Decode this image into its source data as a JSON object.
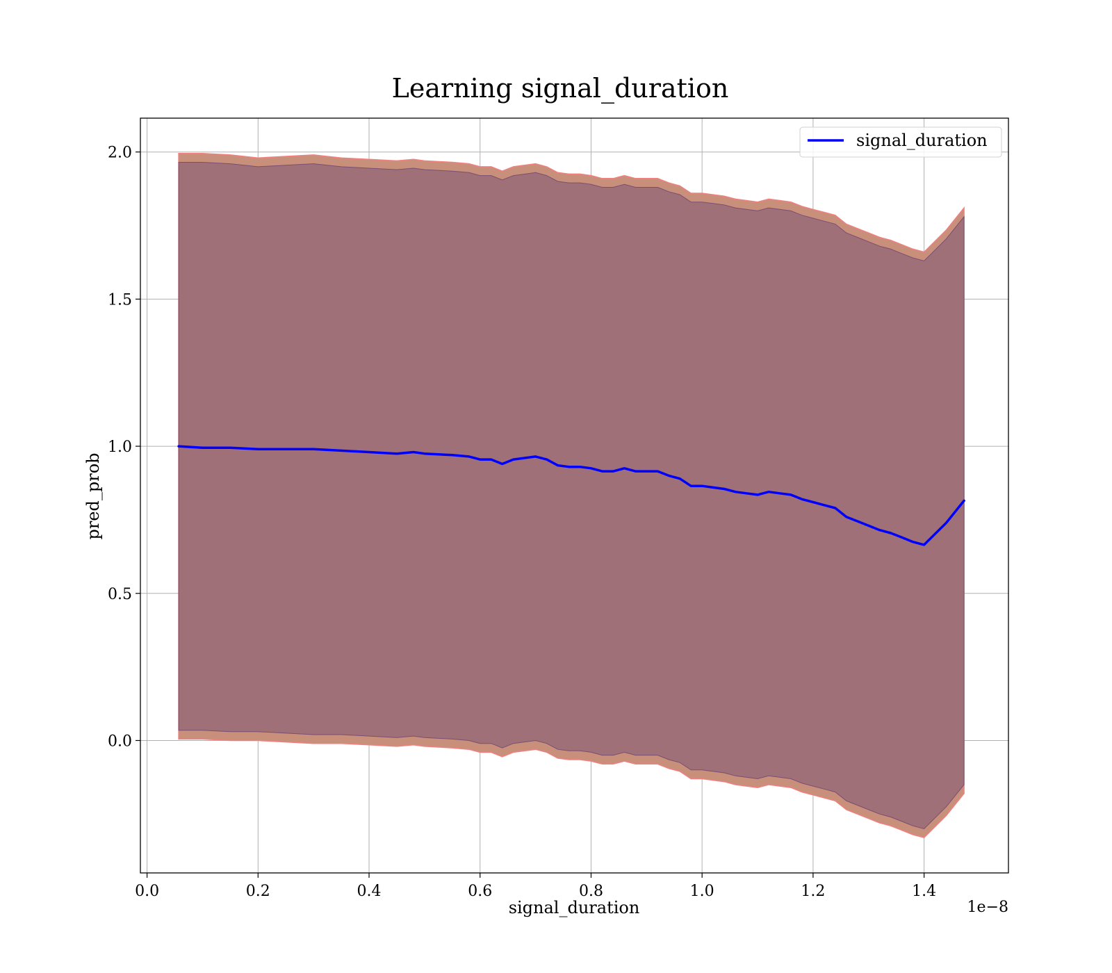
{
  "chart_data": {
    "type": "line",
    "title": "Learning signal_duration",
    "xlabel": "signal_duration",
    "ylabel": "pred_prob",
    "x_offset_text": "1e−8",
    "xlim": [
      -0.012,
      1.552
    ],
    "ylim": [
      -0.45,
      2.115
    ],
    "x_ticks": [
      0.0,
      0.2,
      0.4,
      0.6,
      0.8,
      1.0,
      1.2,
      1.4
    ],
    "x_tick_labels": [
      "0.0",
      "0.2",
      "0.4",
      "0.6",
      "0.8",
      "1.0",
      "1.2",
      "1.4"
    ],
    "y_ticks": [
      0.0,
      0.5,
      1.0,
      1.5,
      2.0
    ],
    "y_tick_labels": [
      "0.0",
      "0.5",
      "1.0",
      "1.5",
      "2.0"
    ],
    "grid": true,
    "legend": {
      "position": "top-right",
      "entries": [
        "signal_duration"
      ]
    },
    "colors": {
      "line": "#0000ff",
      "outer_band": "#c8907a",
      "outer_band_edge": "#f08080",
      "inner_band": "#a07078",
      "inner_band_edge": "#7a4d73"
    },
    "series": [
      {
        "name": "signal_duration",
        "x": [
          0.057,
          0.1,
          0.15,
          0.2,
          0.25,
          0.3,
          0.35,
          0.4,
          0.45,
          0.48,
          0.5,
          0.55,
          0.58,
          0.6,
          0.62,
          0.64,
          0.66,
          0.7,
          0.72,
          0.74,
          0.76,
          0.78,
          0.8,
          0.82,
          0.84,
          0.86,
          0.88,
          0.9,
          0.92,
          0.94,
          0.96,
          0.98,
          1.0,
          1.02,
          1.04,
          1.06,
          1.08,
          1.1,
          1.12,
          1.14,
          1.16,
          1.18,
          1.2,
          1.22,
          1.24,
          1.26,
          1.28,
          1.3,
          1.32,
          1.34,
          1.36,
          1.38,
          1.4,
          1.44,
          1.472
        ],
        "y": [
          1.0,
          0.995,
          0.995,
          0.99,
          0.99,
          0.99,
          0.985,
          0.98,
          0.975,
          0.98,
          0.975,
          0.97,
          0.965,
          0.955,
          0.955,
          0.94,
          0.955,
          0.965,
          0.955,
          0.935,
          0.93,
          0.93,
          0.925,
          0.915,
          0.915,
          0.925,
          0.915,
          0.915,
          0.915,
          0.9,
          0.89,
          0.865,
          0.865,
          0.86,
          0.855,
          0.845,
          0.84,
          0.835,
          0.845,
          0.84,
          0.835,
          0.82,
          0.81,
          0.8,
          0.79,
          0.76,
          0.745,
          0.73,
          0.715,
          0.705,
          0.69,
          0.675,
          0.665,
          0.74,
          0.815
        ]
      }
    ],
    "bands": [
      {
        "name": "outer",
        "lower": [
          0.005,
          0.005,
          0.0,
          0.0,
          -0.005,
          -0.01,
          -0.01,
          -0.015,
          -0.02,
          -0.015,
          -0.02,
          -0.025,
          -0.03,
          -0.04,
          -0.04,
          -0.055,
          -0.04,
          -0.03,
          -0.04,
          -0.06,
          -0.065,
          -0.065,
          -0.07,
          -0.08,
          -0.08,
          -0.07,
          -0.08,
          -0.08,
          -0.08,
          -0.095,
          -0.105,
          -0.13,
          -0.13,
          -0.135,
          -0.14,
          -0.15,
          -0.155,
          -0.16,
          -0.15,
          -0.155,
          -0.16,
          -0.175,
          -0.185,
          -0.195,
          -0.205,
          -0.235,
          -0.25,
          -0.265,
          -0.28,
          -0.29,
          -0.305,
          -0.32,
          -0.33,
          -0.255,
          -0.18
        ],
        "upper": [
          1.995,
          1.995,
          1.99,
          1.98,
          1.985,
          1.99,
          1.98,
          1.975,
          1.97,
          1.975,
          1.97,
          1.965,
          1.96,
          1.95,
          1.95,
          1.935,
          1.95,
          1.96,
          1.95,
          1.93,
          1.925,
          1.925,
          1.92,
          1.91,
          1.91,
          1.92,
          1.91,
          1.91,
          1.91,
          1.895,
          1.885,
          1.86,
          1.86,
          1.855,
          1.85,
          1.84,
          1.835,
          1.83,
          1.84,
          1.835,
          1.83,
          1.815,
          1.805,
          1.795,
          1.785,
          1.755,
          1.74,
          1.725,
          1.71,
          1.7,
          1.685,
          1.67,
          1.66,
          1.735,
          1.81
        ]
      },
      {
        "name": "inner",
        "lower": [
          0.035,
          0.035,
          0.03,
          0.03,
          0.025,
          0.02,
          0.02,
          0.015,
          0.01,
          0.015,
          0.01,
          0.005,
          0.0,
          -0.01,
          -0.01,
          -0.025,
          -0.01,
          0.0,
          -0.01,
          -0.03,
          -0.035,
          -0.035,
          -0.04,
          -0.05,
          -0.05,
          -0.04,
          -0.05,
          -0.05,
          -0.05,
          -0.065,
          -0.075,
          -0.1,
          -0.1,
          -0.105,
          -0.11,
          -0.12,
          -0.125,
          -0.13,
          -0.12,
          -0.125,
          -0.13,
          -0.145,
          -0.155,
          -0.165,
          -0.175,
          -0.205,
          -0.22,
          -0.235,
          -0.25,
          -0.26,
          -0.275,
          -0.29,
          -0.3,
          -0.225,
          -0.15
        ],
        "upper": [
          1.965,
          1.965,
          1.96,
          1.95,
          1.955,
          1.96,
          1.95,
          1.945,
          1.94,
          1.945,
          1.94,
          1.935,
          1.93,
          1.92,
          1.92,
          1.905,
          1.92,
          1.93,
          1.92,
          1.9,
          1.895,
          1.895,
          1.89,
          1.88,
          1.88,
          1.89,
          1.88,
          1.88,
          1.88,
          1.865,
          1.855,
          1.83,
          1.83,
          1.825,
          1.82,
          1.81,
          1.805,
          1.8,
          1.81,
          1.805,
          1.8,
          1.785,
          1.775,
          1.765,
          1.755,
          1.725,
          1.71,
          1.695,
          1.68,
          1.67,
          1.655,
          1.64,
          1.63,
          1.705,
          1.78
        ]
      }
    ]
  }
}
